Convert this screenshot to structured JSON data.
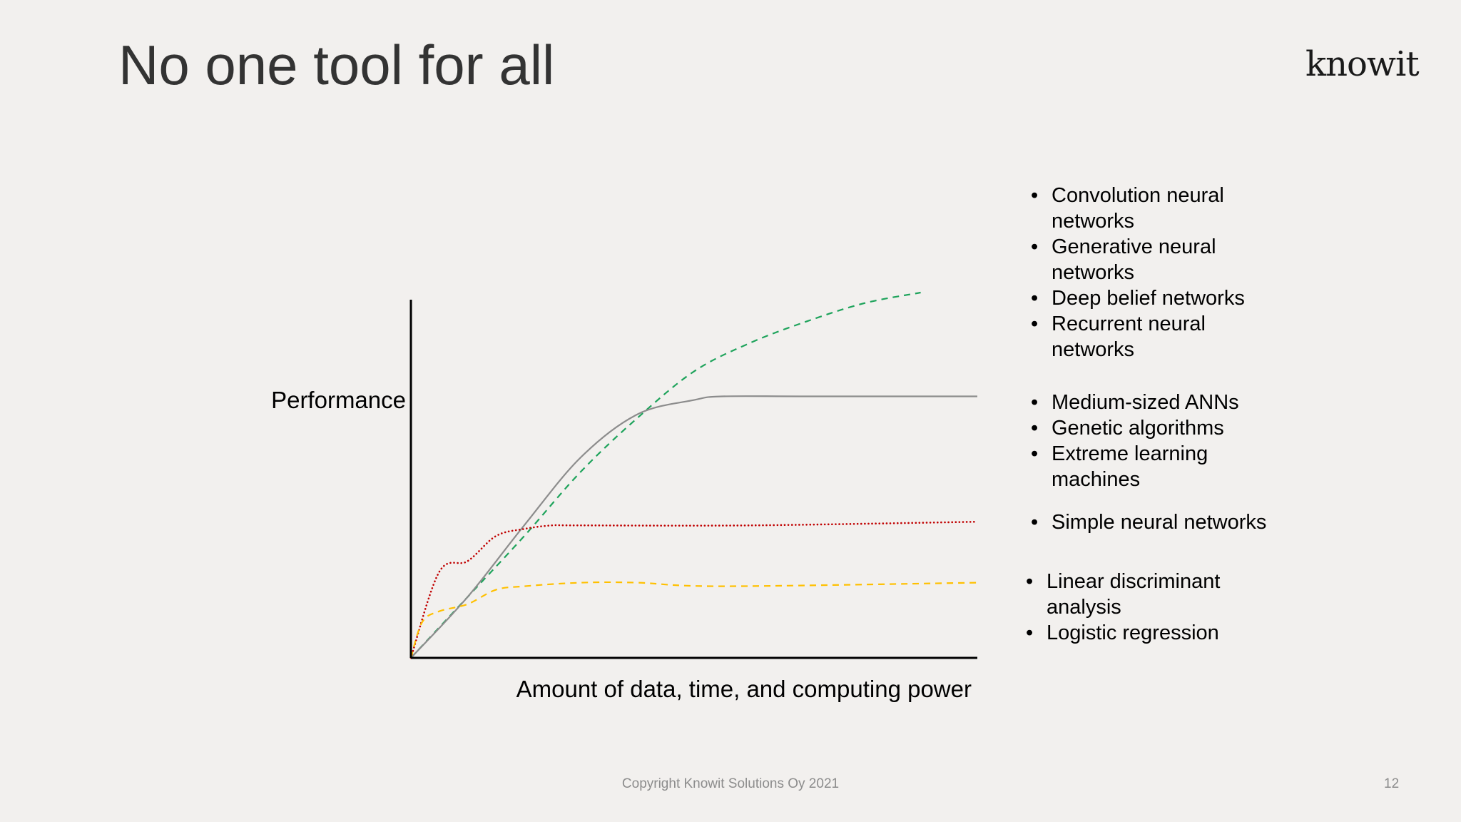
{
  "slide": {
    "title": "No one tool for all",
    "logo": "knowit",
    "footer": "Copyright Knowit Solutions Oy 2021",
    "page_number": "12"
  },
  "legend_groups": [
    {
      "items": [
        "Convolution neural networks",
        "Generative neural networks",
        "Deep belief networks",
        "Recurrent neural networks"
      ]
    },
    {
      "items": [
        "Medium-sized ANNs",
        "Genetic algorithms",
        "Extreme learning machines"
      ]
    },
    {
      "items": [
        "Simple neural networks"
      ]
    },
    {
      "items": [
        "Linear discriminant analysis",
        "Logistic regression"
      ]
    }
  ],
  "chart_data": {
    "type": "line",
    "xlabel": "Amount of data, time, and computing power",
    "ylabel": "Performance",
    "xlim": [
      0,
      100
    ],
    "ylim": [
      0,
      100
    ],
    "grid": false,
    "legend_placement": "right",
    "series": [
      {
        "color": "#1ea35b",
        "dash": "dashed",
        "x": [
          0,
          10,
          20,
          30,
          40,
          50,
          60,
          70,
          80,
          90
        ],
        "y": [
          0,
          17,
          34,
          52,
          67,
          80,
          88,
          94,
          99,
          102
        ]
      },
      {
        "color": "#8c8c8c",
        "dash": "solid",
        "x": [
          0,
          10,
          20,
          30,
          40,
          50,
          55,
          70,
          100
        ],
        "y": [
          0,
          17,
          37,
          56,
          68,
          72,
          73,
          73,
          73
        ]
      },
      {
        "color": "#c00000",
        "dash": "dotted",
        "x": [
          0,
          5,
          10,
          15,
          20,
          25,
          30,
          60,
          100
        ],
        "y": [
          0,
          24,
          27,
          34,
          36,
          37,
          37,
          37,
          38
        ]
      },
      {
        "color": "#ffc000",
        "dash": "dashed",
        "x": [
          0,
          2,
          5,
          10,
          15,
          20,
          30,
          40,
          55,
          100
        ],
        "y": [
          0,
          10,
          13,
          15,
          19,
          20,
          21,
          21,
          20,
          21
        ]
      }
    ]
  }
}
